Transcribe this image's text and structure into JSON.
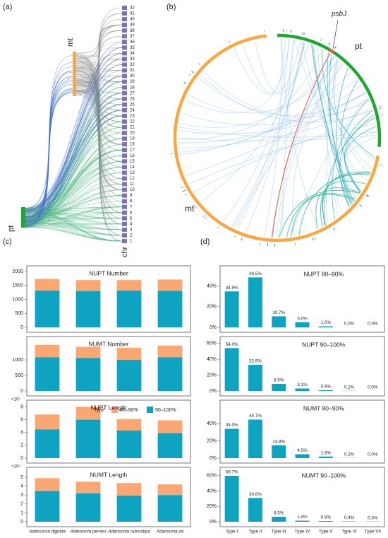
{
  "panel_labels": [
    "(a)",
    "(b)",
    "(c)",
    "(d)"
  ],
  "sankey": {
    "sources": [
      "pt",
      "mt"
    ],
    "target": "chr",
    "chromosomes": [
      "1",
      "2",
      "3",
      "4",
      "5",
      "6",
      "7",
      "8",
      "9",
      "10",
      "11",
      "12",
      "13",
      "14",
      "15",
      "16",
      "17",
      "18",
      "19",
      "20",
      "21",
      "22",
      "23",
      "24",
      "25",
      "26",
      "27",
      "28",
      "29",
      "30",
      "31",
      "32",
      "33",
      "34",
      "35",
      "36",
      "37",
      "38",
      "39",
      "40",
      "41",
      "42"
    ]
  },
  "circos": {
    "gene": "psbJ",
    "pt": "pt",
    "mt": "mt"
  },
  "chart_data": [
    {
      "type": "stacked_bar",
      "title": "NUPT Number",
      "ylim": [
        0,
        2100
      ],
      "yticks": [
        0,
        500,
        1000,
        1500,
        2000
      ],
      "series": [
        {
          "color": "#0fa3c2",
          "values": [
            1320,
            1300,
            1320,
            1310
          ]
        },
        {
          "color": "#fba774",
          "values": [
            410,
            390,
            370,
            400
          ]
        }
      ]
    },
    {
      "type": "stacked_bar",
      "title": "NUMT Number",
      "ylim": [
        0,
        1660
      ],
      "yticks": [
        0,
        500,
        1000
      ],
      "series": [
        {
          "color": "#0fa3c2",
          "values": [
            1080,
            1060,
            1000,
            1080
          ]
        },
        {
          "color": "#fba774",
          "values": [
            400,
            360,
            390,
            380
          ]
        }
      ]
    },
    {
      "type": "stacked_bar",
      "title": "NUPT Length",
      "y_multiplier": "×10⁵",
      "legend_title": "Type",
      "ylim": [
        0,
        8.6
      ],
      "yticks": [
        0,
        2,
        4,
        6,
        8
      ],
      "series": [
        {
          "name": "90–100%",
          "color": "#0fa3c2",
          "values": [
            4.5,
            6.0,
            4.3,
            3.9
          ]
        },
        {
          "name": "80–90%",
          "color": "#fba774",
          "values": [
            2.3,
            2.0,
            1.8,
            2.0
          ]
        }
      ]
    },
    {
      "type": "stacked_bar",
      "title": "NUMT Length",
      "y_multiplier": "×10⁵",
      "ylim": [
        0,
        5.8
      ],
      "yticks": [
        0,
        1,
        2,
        3,
        4,
        5
      ],
      "categories": [
        "Adansonia digitata",
        "Adansonia perrieri",
        "Adansonia rubrostipa",
        "Adansonia za"
      ],
      "series": [
        {
          "color": "#0fa3c2",
          "values": [
            3.45,
            3.2,
            2.95,
            3.0
          ]
        },
        {
          "color": "#fba774",
          "values": [
            1.45,
            1.3,
            1.4,
            1.2
          ]
        }
      ]
    },
    {
      "type": "bar",
      "title": "NUPT 80–90%",
      "color": "#0fa3c2",
      "ylim": [
        0,
        57
      ],
      "yticks": [
        {
          "value": 0,
          "label": "0%"
        },
        {
          "value": 20,
          "label": "20%"
        },
        {
          "value": 40,
          "label": "40%"
        }
      ],
      "values": [
        34.9,
        48.5,
        10.7,
        5.0,
        1.0,
        0.0,
        0.0
      ],
      "value_labels": [
        "34.9%",
        "48.5%",
        "10.7%",
        "5.0%",
        "1.0%",
        "0.0%",
        "0.0%"
      ]
    },
    {
      "type": "bar",
      "title": "NUPT 90–100%",
      "color": "#0fa3c2",
      "ylim": [
        0,
        65
      ],
      "yticks": [
        {
          "value": 0,
          "label": "0%"
        },
        {
          "value": 20,
          "label": "20%"
        },
        {
          "value": 40,
          "label": "40%"
        },
        {
          "value": 60,
          "label": "60%"
        }
      ],
      "values": [
        54.0,
        32.9,
        8.9,
        3.1,
        0.9,
        0.2,
        0.0
      ],
      "value_labels": [
        "54.0%",
        "32.9%",
        "8.9%",
        "3.1%",
        "0.9%",
        "0.2%",
        "0.0%"
      ]
    },
    {
      "type": "bar",
      "title": "NUMT 80–90%",
      "color": "#0fa3c2",
      "ylim": [
        0,
        64
      ],
      "yticks": [
        {
          "value": 0,
          "label": "0%"
        },
        {
          "value": 20,
          "label": "20%"
        },
        {
          "value": 40,
          "label": "40%"
        }
      ],
      "values": [
        34.0,
        44.7,
        14.8,
        4.5,
        1.8,
        0.2,
        0.0
      ],
      "value_labels": [
        "34.0%",
        "44.7%",
        "14.8%",
        "4.5%",
        "1.8%",
        "0.2%",
        "0.0%"
      ]
    },
    {
      "type": "bar",
      "title": "NUMT 90–100%",
      "color": "#0fa3c2",
      "ylim": [
        0,
        67
      ],
      "yticks": [
        {
          "value": 0,
          "label": "0%"
        },
        {
          "value": 20,
          "label": "20%"
        },
        {
          "value": 40,
          "label": "40%"
        },
        {
          "value": 60,
          "label": "60%"
        }
      ],
      "categories": [
        "Type I",
        "Type II",
        "Type III",
        "Type IV",
        "Type V",
        "Type VI",
        "Type VII"
      ],
      "values": [
        59.7,
        30.8,
        6.5,
        1.4,
        0.9,
        0.4,
        0.3
      ],
      "value_labels": [
        "59.7%",
        "30.8%",
        "6.5%",
        "1.4%",
        "0.9%",
        "0.4%",
        "0.3%"
      ]
    }
  ]
}
